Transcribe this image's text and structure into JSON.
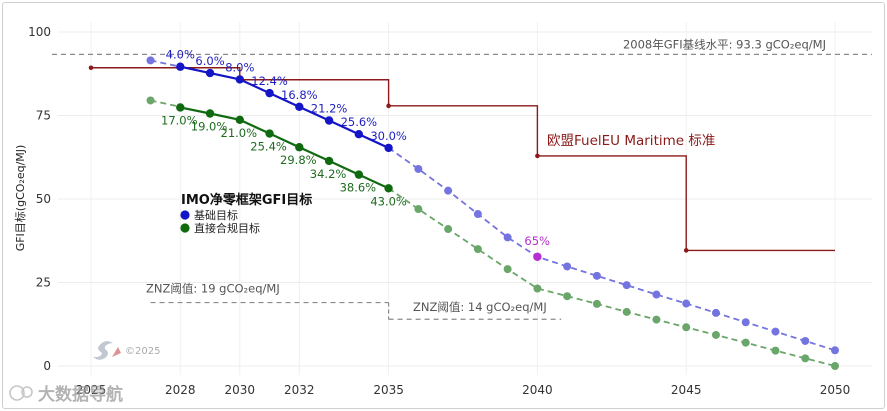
{
  "chart_data": {
    "type": "line",
    "ylabel": "GFI目标(gCO₂eq/MJ)",
    "xlim": [
      2025,
      2050
    ],
    "ylim": [
      0,
      100
    ],
    "x_ticks": [
      "2025",
      "2028",
      "2030",
      "2032",
      "2035",
      "2040",
      "2045",
      "2050"
    ],
    "y_ticks": [
      "0",
      "25",
      "50",
      "75",
      "100"
    ],
    "legend": {
      "title": "IMO净零框架GFI目标",
      "items": [
        {
          "label": "基础目标",
          "color": "#1515c8"
        },
        {
          "label": "直接合规目标",
          "color": "#0f6a0f"
        }
      ]
    },
    "series": [
      {
        "name": "基础目标",
        "color": "#1515c8",
        "x": [
          2028,
          2029,
          2030,
          2031,
          2032,
          2033,
          2034,
          2035
        ],
        "values": [
          89.6,
          87.7,
          85.8,
          81.7,
          77.6,
          73.5,
          69.4,
          65.3
        ],
        "labels": [
          "4.0%",
          "6.0%",
          "8.0%",
          "12.4%",
          "16.8%",
          "21.2%",
          "25.6%",
          "30.0%"
        ]
      },
      {
        "name": "直接合规目标",
        "color": "#0f6a0f",
        "x": [
          2028,
          2029,
          2030,
          2031,
          2032,
          2033,
          2034,
          2035
        ],
        "values": [
          77.4,
          75.6,
          73.7,
          69.6,
          65.5,
          61.4,
          57.3,
          53.2
        ],
        "labels": [
          "17.0%",
          "19.0%",
          "21.0%",
          "25.4%",
          "29.8%",
          "34.2%",
          "38.6%",
          "43.0%"
        ]
      },
      {
        "name": "基础目标(外推)",
        "color": "#7474e0",
        "style": "dashed",
        "x": [
          2027,
          2035,
          2036,
          2037,
          2038,
          2039,
          2040,
          2041,
          2042,
          2043,
          2044,
          2045,
          2046,
          2047,
          2048,
          2049,
          2050
        ],
        "values": [
          91.5,
          65.3,
          59,
          52.5,
          45.5,
          38.5,
          32.7,
          29.8,
          27,
          24.2,
          21.4,
          18.7,
          15.9,
          13.1,
          10.3,
          7.5,
          4.7
        ]
      },
      {
        "name": "直接合规目标(外推)",
        "color": "#6aa66a",
        "style": "dashed",
        "x": [
          2027,
          2035,
          2036,
          2037,
          2038,
          2039,
          2040,
          2041,
          2042,
          2043,
          2044,
          2045,
          2046,
          2047,
          2048,
          2049,
          2050
        ],
        "values": [
          79.5,
          53.2,
          47,
          41,
          35,
          29,
          23.2,
          20.9,
          18.6,
          16.2,
          13.9,
          11.6,
          9.3,
          7,
          4.6,
          2.3,
          0
        ]
      },
      {
        "name": "欧盟FuelEU Maritime 标准",
        "color": "#8b1a1a",
        "style": "step",
        "x": [
          2025,
          2030,
          2035,
          2040,
          2045,
          2050
        ],
        "values": [
          89.3,
          85.7,
          77.9,
          62.9,
          34.6,
          34.6
        ]
      }
    ],
    "highlight": {
      "x": 2040,
      "y": 32.7,
      "label": "65%",
      "color": "#b62fcf"
    },
    "reference_lines": [
      {
        "label": "2008年GFI基线水平: 93.3 gCO₂eq/MJ",
        "y": 93.3
      },
      {
        "label": "ZNZ阈值: 19 gCO₂eq/MJ",
        "y": 19,
        "x_range": [
          2027,
          2035
        ]
      },
      {
        "label": "ZNZ阈值: 14 gCO₂eq/MJ",
        "y": 14,
        "x_range": [
          2035,
          2041
        ]
      }
    ],
    "annotations": {
      "eu_label": "欧盟FuelEU Maritime 标准",
      "watermark": "大数据导航",
      "copyright": "©2025"
    }
  }
}
